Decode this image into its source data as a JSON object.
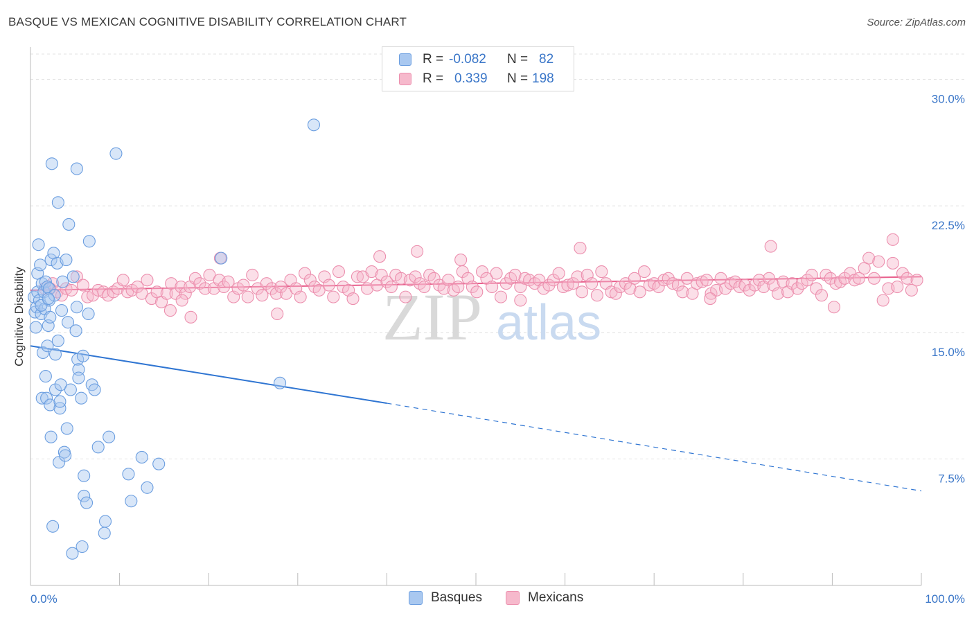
{
  "title": "BASQUE VS MEXICAN COGNITIVE DISABILITY CORRELATION CHART",
  "source": "Source: ZipAtlas.com",
  "watermark": {
    "zip": "ZIP",
    "atlas": "atlas"
  },
  "legend": {
    "basques": {
      "r_label": "R =",
      "r_value": "-0.082",
      "n_label": "N =",
      "n_value": "82"
    },
    "mexicans": {
      "r_label": "R =",
      "r_value": "0.339",
      "n_label": "N =",
      "n_value": "198"
    }
  },
  "bottom_legend": {
    "basques": "Basques",
    "mexicans": "Mexicans"
  },
  "colors": {
    "basques_fill": "#a9c8f0",
    "basques_stroke": "#6b9ee0",
    "basques_line": "#2f75d2",
    "mexicans_fill": "#f6b9cc",
    "mexicans_stroke": "#ec8fae",
    "mexicans_line": "#e85f8c",
    "tick_label": "#3a76c8",
    "grid": "#e2e2e2"
  },
  "chart_data": {
    "type": "scatter",
    "title": "BASQUE VS MEXICAN COGNITIVE DISABILITY CORRELATION CHART",
    "xlabel": "",
    "ylabel": "Cognitive Disability",
    "xlim": [
      0,
      100
    ],
    "ylim": [
      0,
      31.5
    ],
    "x_tick_labels": {
      "left": "0.0%",
      "right": "100.0%"
    },
    "y_ticks": [
      {
        "value": 7.5,
        "label": "7.5%"
      },
      {
        "value": 15.0,
        "label": "15.0%"
      },
      {
        "value": 22.5,
        "label": "22.5%"
      },
      {
        "value": 30.0,
        "label": "30.0%"
      }
    ],
    "grid": true,
    "series": [
      {
        "name": "Basques",
        "r": -0.082,
        "n": 82,
        "trend": {
          "x0": 0,
          "y0": 14.2,
          "x1": 40,
          "y1": 10.8,
          "dash_x1": 100,
          "dash_y1": 5.6
        },
        "points": [
          [
            0.4,
            17.1
          ],
          [
            0.5,
            16.2
          ],
          [
            0.6,
            15.3
          ],
          [
            0.7,
            16.5
          ],
          [
            0.8,
            17.4
          ],
          [
            0.8,
            18.5
          ],
          [
            0.9,
            20.2
          ],
          [
            1.0,
            16.9
          ],
          [
            1.1,
            19.0
          ],
          [
            1.2,
            16.1
          ],
          [
            1.3,
            17.9
          ],
          [
            1.3,
            11.1
          ],
          [
            1.4,
            13.8
          ],
          [
            1.5,
            17.4
          ],
          [
            1.6,
            16.4
          ],
          [
            1.7,
            18.0
          ],
          [
            1.7,
            12.4
          ],
          [
            1.8,
            11.1
          ],
          [
            1.9,
            17.7
          ],
          [
            1.9,
            14.2
          ],
          [
            2.0,
            15.4
          ],
          [
            2.1,
            16.9
          ],
          [
            2.1,
            17.6
          ],
          [
            2.2,
            15.9
          ],
          [
            2.2,
            10.7
          ],
          [
            2.3,
            19.3
          ],
          [
            2.3,
            8.8
          ],
          [
            2.4,
            25.0
          ],
          [
            2.5,
            3.5
          ],
          [
            2.6,
            19.7
          ],
          [
            2.7,
            17.2
          ],
          [
            2.8,
            11.6
          ],
          [
            2.8,
            13.7
          ],
          [
            3.0,
            19.1
          ],
          [
            3.1,
            14.5
          ],
          [
            3.1,
            22.7
          ],
          [
            3.2,
            7.3
          ],
          [
            3.3,
            10.5
          ],
          [
            3.3,
            10.9
          ],
          [
            3.4,
            11.9
          ],
          [
            3.6,
            18.0
          ],
          [
            3.8,
            7.9
          ],
          [
            3.9,
            7.7
          ],
          [
            4.0,
            19.3
          ],
          [
            4.1,
            9.3
          ],
          [
            4.2,
            15.6
          ],
          [
            4.3,
            21.4
          ],
          [
            4.5,
            11.6
          ],
          [
            4.7,
            1.9
          ],
          [
            4.8,
            18.3
          ],
          [
            5.1,
            15.1
          ],
          [
            5.2,
            24.7
          ],
          [
            5.2,
            16.5
          ],
          [
            5.3,
            13.4
          ],
          [
            5.4,
            12.8
          ],
          [
            5.4,
            12.3
          ],
          [
            5.7,
            11.1
          ],
          [
            5.8,
            2.3
          ],
          [
            5.9,
            13.6
          ],
          [
            6.0,
            6.5
          ],
          [
            6.0,
            5.3
          ],
          [
            6.3,
            4.9
          ],
          [
            6.5,
            16.1
          ],
          [
            6.6,
            20.4
          ],
          [
            6.9,
            11.9
          ],
          [
            7.2,
            11.6
          ],
          [
            7.6,
            8.2
          ],
          [
            8.3,
            3.1
          ],
          [
            8.4,
            3.8
          ],
          [
            8.8,
            8.8
          ],
          [
            9.6,
            25.6
          ],
          [
            11.0,
            6.6
          ],
          [
            11.3,
            5.0
          ],
          [
            12.5,
            7.6
          ],
          [
            13.1,
            5.8
          ],
          [
            14.4,
            7.2
          ],
          [
            21.4,
            19.4
          ],
          [
            28.0,
            12.0
          ],
          [
            31.8,
            27.3
          ],
          [
            1.2,
            16.6
          ],
          [
            2.0,
            17.0
          ],
          [
            3.5,
            16.3
          ]
        ]
      },
      {
        "name": "Mexicans",
        "r": 0.339,
        "n": 198,
        "trend": {
          "x0": 0,
          "y0": 17.5,
          "x1": 100,
          "y1": 18.3
        },
        "points": [
          [
            1.6,
            17.6
          ],
          [
            2.2,
            17.6
          ],
          [
            2.5,
            17.9
          ],
          [
            3.0,
            17.4
          ],
          [
            3.5,
            17.2
          ],
          [
            4.0,
            17.6
          ],
          [
            4.6,
            17.5
          ],
          [
            5.2,
            18.3
          ],
          [
            5.9,
            17.8
          ],
          [
            6.4,
            17.1
          ],
          [
            7.0,
            17.2
          ],
          [
            7.6,
            17.5
          ],
          [
            8.2,
            17.4
          ],
          [
            8.7,
            17.2
          ],
          [
            9.3,
            17.4
          ],
          [
            9.8,
            17.6
          ],
          [
            10.4,
            18.1
          ],
          [
            10.9,
            17.4
          ],
          [
            11.4,
            17.5
          ],
          [
            12.0,
            17.7
          ],
          [
            12.5,
            17.3
          ],
          [
            13.1,
            18.1
          ],
          [
            13.6,
            17.0
          ],
          [
            14.2,
            17.4
          ],
          [
            14.7,
            16.8
          ],
          [
            15.3,
            17.3
          ],
          [
            15.8,
            17.9
          ],
          [
            16.3,
            17.3
          ],
          [
            16.9,
            17.7
          ],
          [
            17.4,
            17.3
          ],
          [
            17.9,
            17.7
          ],
          [
            18.5,
            18.2
          ],
          [
            19.0,
            17.9
          ],
          [
            19.6,
            17.6
          ],
          [
            20.1,
            18.4
          ],
          [
            20.6,
            17.6
          ],
          [
            21.2,
            18.1
          ],
          [
            21.7,
            17.7
          ],
          [
            22.2,
            18.0
          ],
          [
            22.8,
            17.1
          ],
          [
            23.3,
            17.6
          ],
          [
            23.9,
            17.8
          ],
          [
            24.4,
            17.1
          ],
          [
            24.9,
            18.4
          ],
          [
            25.5,
            17.6
          ],
          [
            26.0,
            17.2
          ],
          [
            26.5,
            17.9
          ],
          [
            27.1,
            17.6
          ],
          [
            27.6,
            17.3
          ],
          [
            28.1,
            17.7
          ],
          [
            28.7,
            17.3
          ],
          [
            29.2,
            18.1
          ],
          [
            29.8,
            17.6
          ],
          [
            30.3,
            17.1
          ],
          [
            30.8,
            18.5
          ],
          [
            31.4,
            18.1
          ],
          [
            31.9,
            17.7
          ],
          [
            32.4,
            17.5
          ],
          [
            33.0,
            18.3
          ],
          [
            33.5,
            17.8
          ],
          [
            34.0,
            17.1
          ],
          [
            34.6,
            18.6
          ],
          [
            35.1,
            17.7
          ],
          [
            35.7,
            17.5
          ],
          [
            36.2,
            17.0
          ],
          [
            36.7,
            18.3
          ],
          [
            37.3,
            18.3
          ],
          [
            37.8,
            17.6
          ],
          [
            38.3,
            18.6
          ],
          [
            38.9,
            17.8
          ],
          [
            39.4,
            18.4
          ],
          [
            40.0,
            18.0
          ],
          [
            40.5,
            17.7
          ],
          [
            41.0,
            18.4
          ],
          [
            41.6,
            18.2
          ],
          [
            42.1,
            17.1
          ],
          [
            42.6,
            18.1
          ],
          [
            43.2,
            18.3
          ],
          [
            43.7,
            17.9
          ],
          [
            44.2,
            17.7
          ],
          [
            44.8,
            18.4
          ],
          [
            45.3,
            18.2
          ],
          [
            45.9,
            17.8
          ],
          [
            46.4,
            17.6
          ],
          [
            46.9,
            18.1
          ],
          [
            47.5,
            17.5
          ],
          [
            48.0,
            17.7
          ],
          [
            48.5,
            18.6
          ],
          [
            49.1,
            18.2
          ],
          [
            49.6,
            17.7
          ],
          [
            50.1,
            17.4
          ],
          [
            50.7,
            18.6
          ],
          [
            51.2,
            18.2
          ],
          [
            51.8,
            17.7
          ],
          [
            52.3,
            18.5
          ],
          [
            52.8,
            17.1
          ],
          [
            53.4,
            17.9
          ],
          [
            53.9,
            18.2
          ],
          [
            54.4,
            18.4
          ],
          [
            55.0,
            17.7
          ],
          [
            55.5,
            18.2
          ],
          [
            56.0,
            18.1
          ],
          [
            56.6,
            17.9
          ],
          [
            57.1,
            18.1
          ],
          [
            57.6,
            17.6
          ],
          [
            58.2,
            17.8
          ],
          [
            58.7,
            18.1
          ],
          [
            59.3,
            18.5
          ],
          [
            59.8,
            17.7
          ],
          [
            60.3,
            17.8
          ],
          [
            60.9,
            17.9
          ],
          [
            61.4,
            18.3
          ],
          [
            61.9,
            17.4
          ],
          [
            62.5,
            18.4
          ],
          [
            63.0,
            17.9
          ],
          [
            63.6,
            17.2
          ],
          [
            64.1,
            18.6
          ],
          [
            64.6,
            17.9
          ],
          [
            65.2,
            17.4
          ],
          [
            65.7,
            17.3
          ],
          [
            66.2,
            17.7
          ],
          [
            66.8,
            17.9
          ],
          [
            67.3,
            17.6
          ],
          [
            67.8,
            18.2
          ],
          [
            68.4,
            17.4
          ],
          [
            68.9,
            18.6
          ],
          [
            69.5,
            17.8
          ],
          [
            70.0,
            17.9
          ],
          [
            70.5,
            17.7
          ],
          [
            71.1,
            18.1
          ],
          [
            71.6,
            18.2
          ],
          [
            72.1,
            17.9
          ],
          [
            72.7,
            17.8
          ],
          [
            73.2,
            17.4
          ],
          [
            73.7,
            18.2
          ],
          [
            74.3,
            17.3
          ],
          [
            74.8,
            17.9
          ],
          [
            75.4,
            18.0
          ],
          [
            75.9,
            18.1
          ],
          [
            76.4,
            17.3
          ],
          [
            77.0,
            17.5
          ],
          [
            77.5,
            18.2
          ],
          [
            78.0,
            17.6
          ],
          [
            78.6,
            17.9
          ],
          [
            79.1,
            18.0
          ],
          [
            79.6,
            17.7
          ],
          [
            80.2,
            17.8
          ],
          [
            80.7,
            17.5
          ],
          [
            81.3,
            17.8
          ],
          [
            81.8,
            18.1
          ],
          [
            82.3,
            17.7
          ],
          [
            82.9,
            18.2
          ],
          [
            83.4,
            17.8
          ],
          [
            83.9,
            17.3
          ],
          [
            84.5,
            18.0
          ],
          [
            85.0,
            17.4
          ],
          [
            85.5,
            17.9
          ],
          [
            86.1,
            17.6
          ],
          [
            86.6,
            17.9
          ],
          [
            87.2,
            18.1
          ],
          [
            87.7,
            18.4
          ],
          [
            88.2,
            17.6
          ],
          [
            88.8,
            17.2
          ],
          [
            89.3,
            18.4
          ],
          [
            89.8,
            18.2
          ],
          [
            90.4,
            17.9
          ],
          [
            90.9,
            18.0
          ],
          [
            91.4,
            18.2
          ],
          [
            92.0,
            18.5
          ],
          [
            92.5,
            18.1
          ],
          [
            93.0,
            18.2
          ],
          [
            93.6,
            18.8
          ],
          [
            94.1,
            19.4
          ],
          [
            94.7,
            18.2
          ],
          [
            95.2,
            19.2
          ],
          [
            95.7,
            16.9
          ],
          [
            96.3,
            17.6
          ],
          [
            96.8,
            19.1
          ],
          [
            97.3,
            17.7
          ],
          [
            97.9,
            18.5
          ],
          [
            98.4,
            18.2
          ],
          [
            98.9,
            17.5
          ],
          [
            99.5,
            18.1
          ],
          [
            15.7,
            16.3
          ],
          [
            17.0,
            16.9
          ],
          [
            18.0,
            15.9
          ],
          [
            21.3,
            19.4
          ],
          [
            27.7,
            16.1
          ],
          [
            39.2,
            19.5
          ],
          [
            43.4,
            19.8
          ],
          [
            48.3,
            19.3
          ],
          [
            55.0,
            16.9
          ],
          [
            61.7,
            20.0
          ],
          [
            76.3,
            17.0
          ],
          [
            83.1,
            20.1
          ],
          [
            90.2,
            16.5
          ],
          [
            96.8,
            20.5
          ]
        ]
      }
    ]
  }
}
